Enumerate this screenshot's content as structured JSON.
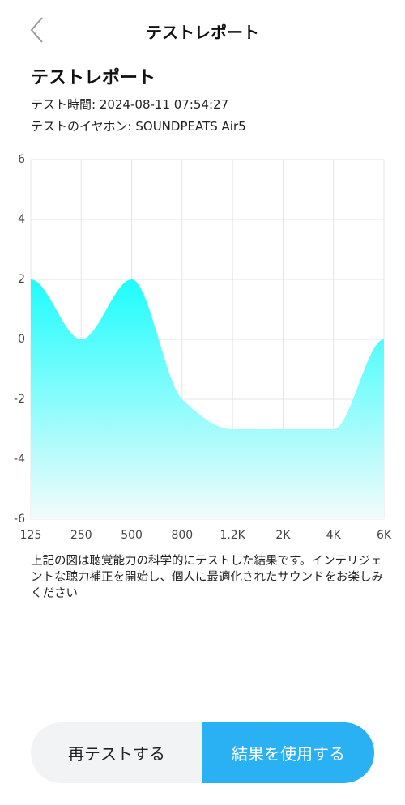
{
  "header": {
    "title": "テストレポート"
  },
  "report": {
    "title": "テストレポート",
    "test_time": "テスト時間: 2024-08-11 07:54:27",
    "earphone": "テストのイヤホン: SOUNDPEATS Air5"
  },
  "chart_data": {
    "type": "area",
    "categories": [
      "125",
      "250",
      "500",
      "800",
      "1.2K",
      "2K",
      "4K",
      "6K"
    ],
    "values": [
      2,
      0,
      2,
      -2,
      -3,
      -3,
      -3,
      0
    ],
    "color": "#1efcfc",
    "ylim": [
      -6,
      6
    ],
    "yticks": [
      -6,
      -4,
      -2,
      0,
      2,
      4,
      6
    ],
    "grid": true
  },
  "description": "上記の図は聴覚能力の科学的にテストした結果です。インテリジェントな聴力補正を開始し、個人に最適化されたサウンドをお楽しみください",
  "buttons": {
    "retest": "再テストする",
    "use": "結果を使用する"
  }
}
